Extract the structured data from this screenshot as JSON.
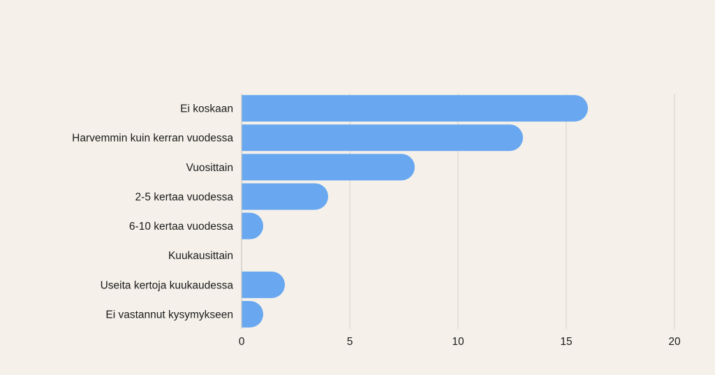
{
  "colors": {
    "background": "#f5f1ea",
    "bar": "#69a8f0",
    "grid": "#d3d0ca",
    "axis": "#c9c6c0",
    "text": "#1a1a1a"
  },
  "chart_data": {
    "type": "bar",
    "orientation": "horizontal",
    "title": "",
    "xlabel": "",
    "ylabel": "",
    "categories": [
      "Ei koskaan",
      "Harvemmin kuin kerran vuodessa",
      "Vuosittain",
      "2-5 kertaa vuodessa",
      "6-10 kertaa vuodessa",
      "Kuukausittain",
      "Useita kertoja kuukaudessa",
      "Ei vastannut kysymykseen"
    ],
    "values": [
      16,
      13,
      8,
      4,
      1,
      0,
      2,
      1
    ],
    "xlim": [
      0,
      20
    ],
    "xticks": [
      0,
      5,
      10,
      15,
      20
    ],
    "grid": true,
    "legend": "none",
    "bar_end": "rounded"
  }
}
